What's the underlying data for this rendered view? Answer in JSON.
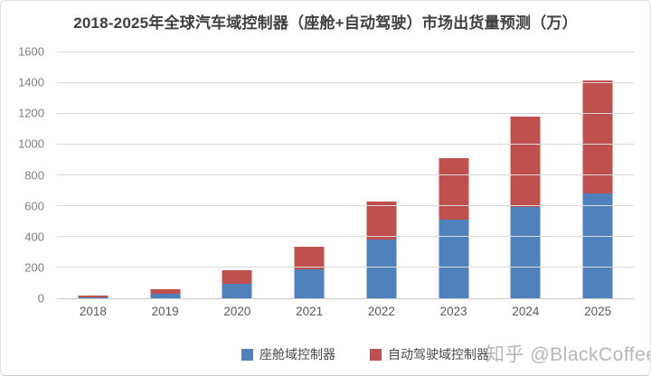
{
  "title": "2018-2025年全球汽车域控制器（座舱+自动驾驶）市场出货量预测（万）",
  "watermark": "知乎 @BlackCoffee",
  "colors": {
    "cockpit_blue": "#4f81bd",
    "autonomous_red": "#c0504d",
    "gridline": "#d9d9d9",
    "axis_label": "#808080",
    "title_text": "#3f3f3f",
    "watermark_gray": "#b4b7bb"
  },
  "legend": {
    "items": [
      {
        "label": "座舱域控制器",
        "color": "#4f81bd"
      },
      {
        "label": "自动驾驶域控制器",
        "color": "#c0504d"
      }
    ]
  },
  "chart_data": {
    "type": "bar",
    "stacked": true,
    "title": "2018-2025年全球汽车域控制器（座舱+自动驾驶）市场出货量预测（万）",
    "categories": [
      "2018",
      "2019",
      "2020",
      "2021",
      "2022",
      "2023",
      "2024",
      "2025"
    ],
    "series": [
      {
        "name": "座舱域控制器",
        "color": "#4f81bd",
        "values": [
          5,
          30,
          95,
          190,
          380,
          510,
          590,
          680
        ]
      },
      {
        "name": "自动驾驶域控制器",
        "color": "#c0504d",
        "values": [
          15,
          30,
          85,
          145,
          245,
          400,
          590,
          730
        ]
      }
    ],
    "totals": [
      20,
      60,
      180,
      335,
      625,
      910,
      1180,
      1410
    ],
    "xlabel": "",
    "ylabel": "",
    "unit": "万",
    "ylim": [
      0,
      1600
    ],
    "yticks": [
      0,
      200,
      400,
      600,
      800,
      1000,
      1200,
      1400,
      1600
    ],
    "grid": true,
    "legend_position": "bottom"
  }
}
